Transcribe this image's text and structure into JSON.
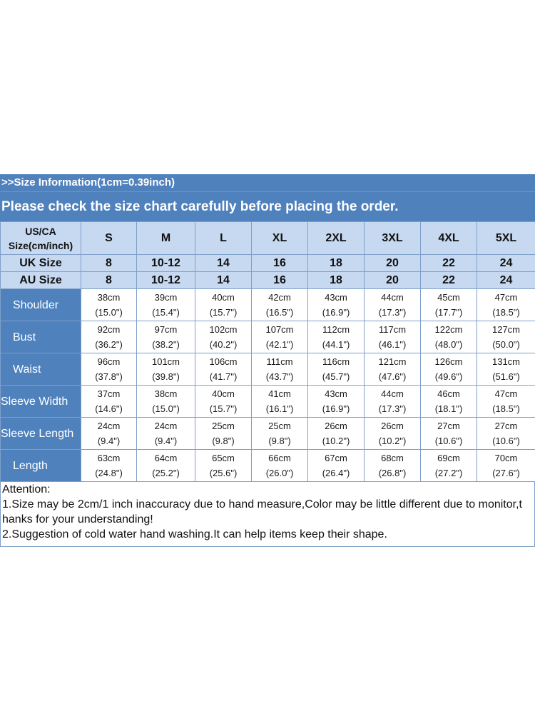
{
  "header": {
    "info": ">>Size Information(1cm=0.39inch)",
    "notice": "Please check the size chart carefully before placing the order."
  },
  "sizes": {
    "label": [
      "US/CA",
      "Size(cm/inch)"
    ],
    "us": [
      "S",
      "M",
      "L",
      "XL",
      "2XL",
      "3XL",
      "4XL",
      "5XL"
    ],
    "uk_label": "UK Size",
    "uk": [
      "8",
      "10-12",
      "14",
      "16",
      "18",
      "20",
      "22",
      "24"
    ],
    "au_label": "AU Size",
    "au": [
      "8",
      "10-12",
      "14",
      "16",
      "18",
      "20",
      "22",
      "24"
    ]
  },
  "measurements": [
    {
      "name": "Shoulder",
      "indent": true,
      "cm": [
        "38cm",
        "39cm",
        "40cm",
        "42cm",
        "43cm",
        "44cm",
        "45cm",
        "47cm"
      ],
      "in": [
        "(15.0\")",
        "(15.4\")",
        "(15.7\")",
        "(16.5\")",
        "(16.9\")",
        "(17.3\")",
        "(17.7\")",
        "(18.5\")"
      ]
    },
    {
      "name": "Bust",
      "indent": true,
      "cm": [
        "92cm",
        "97cm",
        "102cm",
        "107cm",
        "112cm",
        "117cm",
        "122cm",
        "127cm"
      ],
      "in": [
        "(36.2\")",
        "(38.2\")",
        "(40.2\")",
        "(42.1\")",
        "(44.1\")",
        "(46.1\")",
        "(48.0\")",
        "(50.0\")"
      ]
    },
    {
      "name": "Waist",
      "indent": true,
      "cm": [
        "96cm",
        "101cm",
        "106cm",
        "111cm",
        "116cm",
        "121cm",
        "126cm",
        "131cm"
      ],
      "in": [
        "(37.8\")",
        "(39.8\")",
        "(41.7\")",
        "(43.7\")",
        "(45.7\")",
        "(47.6\")",
        "(49.6\")",
        "(51.6\")"
      ]
    },
    {
      "name": "Sleeve Width",
      "indent": false,
      "cm": [
        "37cm",
        "38cm",
        "40cm",
        "41cm",
        "43cm",
        "44cm",
        "46cm",
        "47cm"
      ],
      "in": [
        "(14.6\")",
        "(15.0\")",
        "(15.7\")",
        "(16.1\")",
        "(16.9\")",
        "(17.3\")",
        "(18.1\")",
        "(18.5\")"
      ]
    },
    {
      "name": "Sleeve Length",
      "indent": false,
      "cm": [
        "24cm",
        "24cm",
        "25cm",
        "25cm",
        "26cm",
        "26cm",
        "27cm",
        "27cm"
      ],
      "in": [
        "(9.4\")",
        "(9.4\")",
        "(9.8\")",
        "(9.8\")",
        "(10.2\")",
        "(10.2\")",
        "(10.6\")",
        "(10.6\")"
      ]
    },
    {
      "name": "Length",
      "indent": true,
      "cm": [
        "63cm",
        "64cm",
        "65cm",
        "66cm",
        "67cm",
        "68cm",
        "69cm",
        "70cm"
      ],
      "in": [
        "(24.8\")",
        "(25.2\")",
        "(25.6\")",
        "(26.0\")",
        "(26.4\")",
        "(26.8\")",
        "(27.2\")",
        "(27.6\")"
      ]
    }
  ],
  "notes": {
    "title": "Attention:",
    "line1": "1.Size may be 2cm/1 inch inaccuracy due to hand measure,Color may be little different due to monitor,t\nhanks for your understanding!",
    "line2": "2.Suggestion of cold water hand washing.It can help items keep their shape."
  },
  "colors": {
    "header_bg": "#4f81bd",
    "size_header_bg": "#c6d9f1",
    "border": "#7f9fc8"
  }
}
